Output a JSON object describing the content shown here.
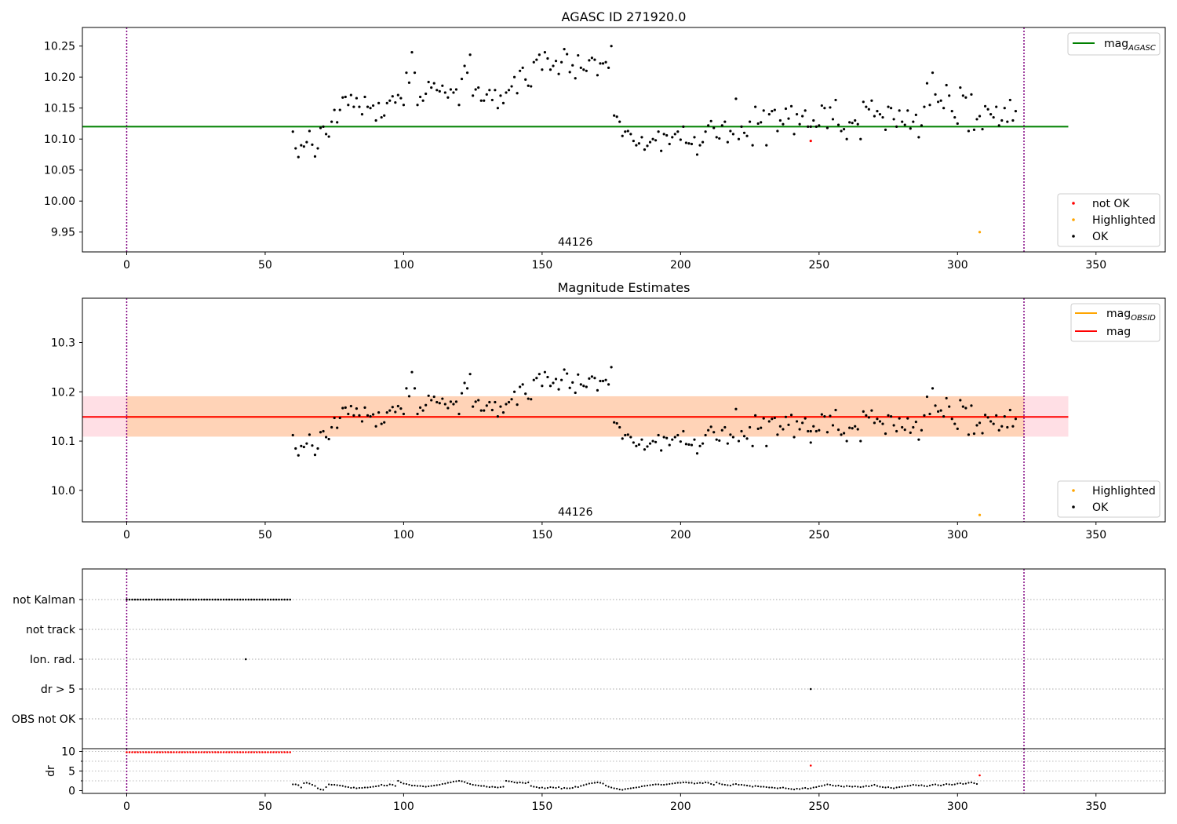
{
  "chart_data": [
    {
      "type": "scatter",
      "title": "AGASC ID 271920.0",
      "annotation": "44126",
      "xlim": [
        -16,
        375
      ],
      "ylim": [
        9.918,
        10.28
      ],
      "xticks": [
        0,
        50,
        100,
        150,
        200,
        250,
        300,
        350
      ],
      "yticks": [
        9.95,
        10.0,
        10.05,
        10.1,
        10.15,
        10.2,
        10.25
      ],
      "ytick_labels": [
        "9.95",
        "10.00",
        "10.05",
        "10.10",
        "10.15",
        "10.20",
        "10.25"
      ],
      "reference_line": {
        "value": 10.12,
        "x_range": [
          -16,
          340
        ],
        "color": "#008000",
        "label_main": "mag",
        "label_sub": "AGASC"
      },
      "vlines": [
        0,
        324
      ],
      "vline_color": "#800080",
      "legend_markers": [
        {
          "label": "not OK",
          "color": "#ff0000"
        },
        {
          "label": "Highlighted",
          "color": "#ffa500"
        },
        {
          "label": "OK",
          "color": "#000000"
        }
      ],
      "ok_points_x_start": 60,
      "ok_points": [
        10.112,
        10.085,
        10.071,
        10.09,
        10.088,
        10.095,
        10.113,
        10.091,
        10.072,
        10.085,
        10.118,
        10.12,
        10.108,
        10.104,
        10.128,
        10.147,
        10.127,
        10.147,
        10.167,
        10.168,
        10.155,
        10.171,
        10.152,
        10.166,
        10.152,
        10.14,
        10.168,
        10.152,
        10.15,
        10.154,
        10.13,
        10.158,
        10.135,
        10.138,
        10.158,
        10.162,
        10.169,
        10.159,
        10.171,
        10.166,
        10.155,
        10.207,
        10.191,
        10.24,
        10.207,
        10.155,
        10.168,
        10.162,
        10.173,
        10.192,
        10.183,
        10.19,
        10.179,
        10.177,
        10.186,
        10.175,
        10.167,
        10.18,
        10.175,
        10.18,
        10.155,
        10.197,
        10.218,
        10.207,
        10.236,
        10.17,
        10.18,
        10.183,
        10.162,
        10.162,
        10.172,
        10.179,
        10.163,
        10.179,
        10.15,
        10.17,
        10.158,
        10.175,
        10.179,
        10.185,
        10.2,
        10.174,
        10.21,
        10.215,
        10.196,
        10.186,
        10.185,
        10.224,
        10.228,
        10.236,
        10.212,
        10.24,
        10.23,
        10.212,
        10.218,
        10.226,
        10.205,
        10.224,
        10.245,
        10.237,
        10.208,
        10.219,
        10.198,
        10.235,
        10.215,
        10.212,
        10.21,
        10.227,
        10.231,
        10.228,
        10.203,
        10.222,
        10.222,
        10.224,
        10.215,
        10.25,
        10.138,
        10.136,
        10.128,
        10.105,
        10.112,
        10.113,
        10.108,
        10.097,
        10.09,
        10.093,
        10.103,
        10.083,
        10.089,
        10.095,
        10.1,
        10.098,
        10.112,
        10.081,
        10.108,
        10.106,
        10.092,
        10.103,
        10.108,
        10.112,
        10.099,
        10.12,
        10.094,
        10.093,
        10.092,
        10.103,
        10.075,
        10.09,
        10.095,
        10.112,
        10.122,
        10.129,
        10.118,
        10.103,
        10.101,
        10.122,
        10.128,
        10.095,
        10.113,
        10.108,
        10.165,
        10.1,
        10.12,
        10.11,
        10.105,
        10.128,
        10.09,
        10.152,
        10.125,
        10.127,
        10.146,
        10.09,
        10.14,
        10.145,
        10.147,
        10.113,
        10.13,
        10.124,
        10.149,
        10.133,
        10.153,
        10.108,
        10.14,
        10.124,
        10.137,
        10.146,
        10.12,
        10.12,
        10.13,
        10.12,
        10.122,
        10.154,
        10.15,
        10.118,
        10.151,
        10.132,
        10.163,
        10.123,
        10.113,
        10.116,
        10.1,
        10.127,
        10.126,
        10.13,
        10.124,
        10.1,
        10.16,
        10.152,
        10.148,
        10.162,
        10.137,
        10.145,
        10.14,
        10.135,
        10.115,
        10.152,
        10.15,
        10.132,
        10.12,
        10.146,
        10.128,
        10.123,
        10.146,
        10.117,
        10.128,
        10.139,
        10.103,
        10.122,
        10.152,
        10.19,
        10.155,
        10.207,
        10.172,
        10.16,
        10.162,
        10.15,
        10.187,
        10.17,
        10.145,
        10.135,
        10.125,
        10.183,
        10.17,
        10.167,
        10.113,
        10.172,
        10.115,
        10.132,
        10.137,
        10.116,
        10.153,
        10.148,
        10.14,
        10.135,
        10.152,
        10.122,
        10.13,
        10.15,
        10.128,
        10.163,
        10.13,
        10.145
      ],
      "not_ok_points": [
        {
          "x": 247,
          "y": 10.097
        }
      ],
      "highlighted_points": [
        {
          "x": 308,
          "y": 9.95
        }
      ]
    },
    {
      "type": "scatter",
      "title": "Magnitude Estimates",
      "annotation": "44126",
      "xlim": [
        -16,
        375
      ],
      "ylim": [
        9.936,
        10.39
      ],
      "xticks": [
        0,
        50,
        100,
        150,
        200,
        250,
        300,
        350
      ],
      "yticks": [
        10.0,
        10.1,
        10.2,
        10.3
      ],
      "ytick_labels": [
        "10.0",
        "10.1",
        "10.2",
        "10.3"
      ],
      "mag_line": {
        "value": 10.149,
        "x_range": [
          -16,
          340
        ],
        "color": "#ff0000",
        "label": "mag"
      },
      "mag_band": {
        "low": 10.109,
        "high": 10.191,
        "color": "#ffc0cb"
      },
      "obsid_line": {
        "value": 10.149,
        "x_range": [
          0,
          324
        ],
        "color": "#ffa500",
        "label_main": "mag",
        "label_sub": "OBSID"
      },
      "obsid_band": {
        "low": 10.109,
        "high": 10.191,
        "color": "#ffa500"
      },
      "vlines": [
        0,
        324
      ],
      "legend_markers": [
        {
          "label": "Highlighted",
          "color": "#ffa500"
        },
        {
          "label": "OK",
          "color": "#000000"
        }
      ],
      "highlighted_points": [
        {
          "x": 308,
          "y": 9.95
        }
      ]
    },
    {
      "type": "scatter",
      "xlim": [
        -16,
        375
      ],
      "xticks": [
        0,
        50,
        100,
        150,
        200,
        250,
        300,
        350
      ],
      "flag_categories": [
        "not Kalman",
        "not track",
        "Ion. rad.",
        "dr > 5",
        "OBS not OK"
      ],
      "flag_points": [
        {
          "category": "not Kalman",
          "x_range": [
            0,
            59
          ]
        },
        {
          "category": "Ion. rad.",
          "x": 43
        },
        {
          "category": "dr > 5",
          "x": 247
        }
      ],
      "vlines": [
        0,
        324
      ]
    },
    {
      "type": "scatter",
      "ylabel": "dr",
      "xlim": [
        -16,
        375
      ],
      "ylim": [
        -0.7,
        10.7
      ],
      "yticks": [
        0,
        5,
        10
      ],
      "ytick_labels": [
        "0",
        "5",
        "10"
      ],
      "xticks": [
        0,
        50,
        100,
        150,
        200,
        250,
        300,
        350
      ],
      "xtick_labels": [
        "0",
        "50",
        "100",
        "150",
        "200",
        "250",
        "300",
        "350"
      ],
      "dr_saturated": {
        "x_range": [
          0,
          59
        ],
        "value": 9.8,
        "color": "#ff0000"
      },
      "dr_outliers": [
        {
          "x": 247,
          "y": 6.4
        },
        {
          "x": 308,
          "y": 3.9
        }
      ],
      "dr_points_x_start": 60,
      "dr_points": [
        1.6,
        1.6,
        1.4,
        0.8,
        1.9,
        2.0,
        1.8,
        1.5,
        1.2,
        0.6,
        0.3,
        0.2,
        0.9,
        1.6,
        1.5,
        1.5,
        1.4,
        1.3,
        1.2,
        1.0,
        0.9,
        0.7,
        0.8,
        0.6,
        0.7,
        0.7,
        0.8,
        0.8,
        0.9,
        1.0,
        1.1,
        1.2,
        1.5,
        1.3,
        1.3,
        1.6,
        1.5,
        1.2,
        2.5,
        2.1,
        1.8,
        1.7,
        1.5,
        1.3,
        1.3,
        1.2,
        1.2,
        1.1,
        1.0,
        1.1,
        1.2,
        1.3,
        1.4,
        1.5,
        1.7,
        1.8,
        2.0,
        2.1,
        2.3,
        2.4,
        2.5,
        2.4,
        2.2,
        1.9,
        1.7,
        1.5,
        1.4,
        1.3,
        1.2,
        1.2,
        1.0,
        0.9,
        1.0,
        0.9,
        0.8,
        0.9,
        1.0,
        2.5,
        2.4,
        2.3,
        2.1,
        2.0,
        2.1,
        2.0,
        1.9,
        2.1,
        1.2,
        1.0,
        0.9,
        0.7,
        0.8,
        0.6,
        0.7,
        0.9,
        0.8,
        0.7,
        0.9,
        0.5,
        0.7,
        0.6,
        0.6,
        0.7,
        1.0,
        0.9,
        1.2,
        1.4,
        1.6,
        1.8,
        1.9,
        2.0,
        2.1,
        2.0,
        1.8,
        1.3,
        1.0,
        0.8,
        0.6,
        0.5,
        0.3,
        0.2,
        0.4,
        0.5,
        0.6,
        0.7,
        0.8,
        0.9,
        1.1,
        1.2,
        1.3,
        1.4,
        1.5,
        1.6,
        1.6,
        1.5,
        1.5,
        1.6,
        1.7,
        1.8,
        1.9,
        2.0,
        2.0,
        2.1,
        2.1,
        2.0,
        2.0,
        1.8,
        1.9,
        2.0,
        1.9,
        2.1,
        2.0,
        1.7,
        1.5,
        2.1,
        1.8,
        1.6,
        1.5,
        1.4,
        1.3,
        1.6,
        1.7,
        1.5,
        1.5,
        1.4,
        1.3,
        1.2,
        1.0,
        1.2,
        1.1,
        1.0,
        1.0,
        0.9,
        0.8,
        0.8,
        0.7,
        0.6,
        0.7,
        0.8,
        0.6,
        0.5,
        0.4,
        0.3,
        0.5,
        0.4,
        0.6,
        0.7,
        0.5,
        0.6,
        0.8,
        0.9,
        1.1,
        1.2,
        1.4,
        1.6,
        1.5,
        1.3,
        1.2,
        1.3,
        1.1,
        1.0,
        1.2,
        1.1,
        1.0,
        1.1,
        1.0,
        0.9,
        1.0,
        1.2,
        1.1,
        1.3,
        1.5,
        1.2,
        1.0,
        0.9,
        0.8,
        0.9,
        0.7,
        0.6,
        0.8,
        0.9,
        1.0,
        1.1,
        1.2,
        1.3,
        1.5,
        1.4,
        1.3,
        1.4,
        1.2,
        1.1,
        1.3,
        1.5,
        1.6,
        1.4,
        1.3,
        1.5,
        1.7,
        1.6,
        1.5,
        1.6,
        1.8,
        1.9,
        1.7,
        1.8,
        2.0,
        2.1,
        1.9,
        1.7
      ]
    }
  ]
}
